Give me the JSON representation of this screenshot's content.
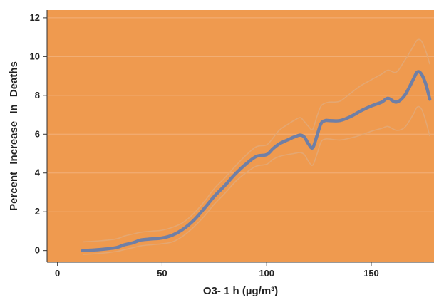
{
  "chart_data": {
    "type": "line",
    "title": "",
    "xlabel": "O3- 1 h (µg/m³)",
    "ylabel": "Percent Increase In Deaths",
    "xlim": [
      -5,
      180
    ],
    "ylim": [
      -0.6,
      12.4
    ],
    "xticks": [
      0,
      50,
      100,
      150
    ],
    "yticks": [
      0,
      2,
      4,
      6,
      8,
      10,
      12
    ],
    "grid": "horizontal",
    "legend": "none",
    "colors": {
      "plot_background": "#EF9A4F",
      "gridline": "#F3B07A",
      "center_line": "#6F7FA6",
      "band_lines": "#E4A772",
      "axis": "#333333"
    },
    "series": [
      {
        "role": "estimate",
        "x": [
          12,
          20,
          28,
          32,
          36,
          40,
          45,
          50,
          55,
          60,
          65,
          70,
          75,
          80,
          85,
          90,
          95,
          100,
          103,
          106,
          110,
          113,
          116,
          118,
          120,
          122,
          124,
          126,
          128,
          130,
          135,
          140,
          145,
          150,
          155,
          158,
          162,
          166,
          170,
          172,
          174,
          176,
          178
        ],
        "y": [
          0.0,
          0.05,
          0.15,
          0.3,
          0.4,
          0.55,
          0.6,
          0.65,
          0.8,
          1.1,
          1.55,
          2.15,
          2.8,
          3.35,
          3.95,
          4.45,
          4.85,
          4.95,
          5.25,
          5.5,
          5.7,
          5.85,
          5.95,
          5.85,
          5.5,
          5.3,
          5.9,
          6.55,
          6.7,
          6.7,
          6.7,
          6.9,
          7.2,
          7.45,
          7.65,
          7.85,
          7.65,
          8.0,
          8.8,
          9.2,
          9.1,
          8.6,
          7.8
        ]
      },
      {
        "role": "upper-bound",
        "x": [
          12,
          20,
          28,
          32,
          36,
          40,
          45,
          50,
          55,
          60,
          65,
          70,
          75,
          80,
          85,
          90,
          95,
          100,
          103,
          106,
          110,
          113,
          116,
          118,
          120,
          122,
          124,
          126,
          128,
          130,
          135,
          140,
          145,
          150,
          155,
          158,
          162,
          166,
          170,
          172,
          174,
          176,
          178
        ],
        "y": [
          0.45,
          0.5,
          0.6,
          0.75,
          0.85,
          0.95,
          1.0,
          1.05,
          1.2,
          1.45,
          1.9,
          2.5,
          3.2,
          3.75,
          4.35,
          4.9,
          5.35,
          5.45,
          5.8,
          6.2,
          6.5,
          6.7,
          6.85,
          6.65,
          6.4,
          6.25,
          6.9,
          7.45,
          7.6,
          7.65,
          7.7,
          8.1,
          8.5,
          8.8,
          9.1,
          9.3,
          9.2,
          9.8,
          10.5,
          10.85,
          10.8,
          10.3,
          9.6
        ]
      },
      {
        "role": "lower-bound",
        "x": [
          12,
          20,
          28,
          32,
          36,
          40,
          45,
          50,
          55,
          60,
          65,
          70,
          75,
          80,
          85,
          90,
          95,
          100,
          103,
          106,
          110,
          113,
          116,
          118,
          120,
          122,
          124,
          126,
          128,
          130,
          135,
          140,
          145,
          150,
          155,
          158,
          162,
          166,
          170,
          172,
          174,
          176,
          178
        ],
        "y": [
          -0.2,
          -0.15,
          -0.05,
          0.05,
          0.15,
          0.25,
          0.3,
          0.35,
          0.45,
          0.75,
          1.2,
          1.75,
          2.4,
          2.95,
          3.55,
          4.0,
          4.35,
          4.45,
          4.7,
          4.85,
          4.95,
          5.0,
          5.05,
          4.95,
          4.6,
          4.4,
          4.95,
          5.6,
          5.75,
          5.75,
          5.7,
          5.8,
          5.95,
          6.15,
          6.3,
          6.4,
          6.2,
          6.35,
          7.0,
          7.4,
          7.3,
          6.7,
          5.9
        ]
      }
    ]
  }
}
